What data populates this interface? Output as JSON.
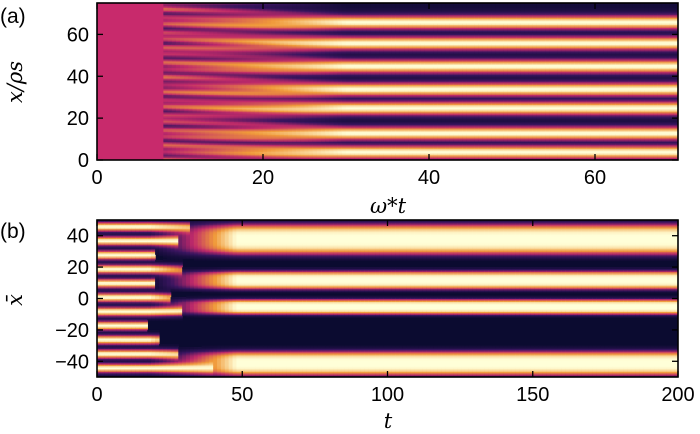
{
  "chart_data": [
    {
      "type": "heatmap",
      "panel_label": "(a)",
      "xlabel": "ω*t",
      "ylabel": "x/ρs",
      "xlim": [
        0,
        70
      ],
      "ylim": [
        0,
        75
      ],
      "xticks": [
        0,
        20,
        40,
        60
      ],
      "yticks": [
        0,
        20,
        40,
        60
      ],
      "xtick_labels": [
        "0",
        "20",
        "40",
        "60"
      ],
      "ytick_labels": [
        "0",
        "20",
        "40",
        "60"
      ],
      "colormap": [
        "#0b0b30",
        "#3a1560",
        "#c02a6a",
        "#f09a3a",
        "#ffffd8"
      ],
      "uniform_value_before": 8,
      "uniform_color": "#c82a6c",
      "transition_range": [
        8,
        30
      ],
      "bright_band_centers": [
        4,
        13,
        25,
        34,
        45,
        56,
        66
      ],
      "dark_band_centers": [
        9,
        19,
        29,
        40,
        51,
        61,
        71
      ]
    },
    {
      "type": "heatmap",
      "panel_label": "(b)",
      "xlabel": "t",
      "ylabel": "x̄",
      "xlim": [
        0,
        200
      ],
      "ylim": [
        -50,
        50
      ],
      "xticks": [
        0,
        50,
        100,
        150,
        200
      ],
      "yticks": [
        -40,
        -20,
        0,
        20,
        40
      ],
      "xtick_labels": [
        "0",
        "50",
        "100",
        "150",
        "200"
      ],
      "ytick_labels": [
        "−40",
        "−20",
        "0",
        "20",
        "40"
      ],
      "colormap": [
        "#0b0b30",
        "#3a1560",
        "#c02a6a",
        "#f09a3a",
        "#ffffd8"
      ],
      "early_bright_bands": [
        46,
        37,
        28,
        19,
        10,
        1,
        -8,
        -17,
        -26,
        -35,
        -44
      ],
      "merge_times": [
        32,
        28,
        20,
        30,
        20,
        25,
        30,
        18,
        22,
        28,
        40
      ],
      "late_bright_bands": [
        {
          "center": 38,
          "half_width": 10
        },
        {
          "center": 12,
          "half_width": 6
        },
        {
          "center": -5,
          "half_width": 5
        },
        {
          "center": -41,
          "half_width": 8
        }
      ],
      "late_dark_bands": [
        24,
        4,
        -23
      ]
    }
  ]
}
